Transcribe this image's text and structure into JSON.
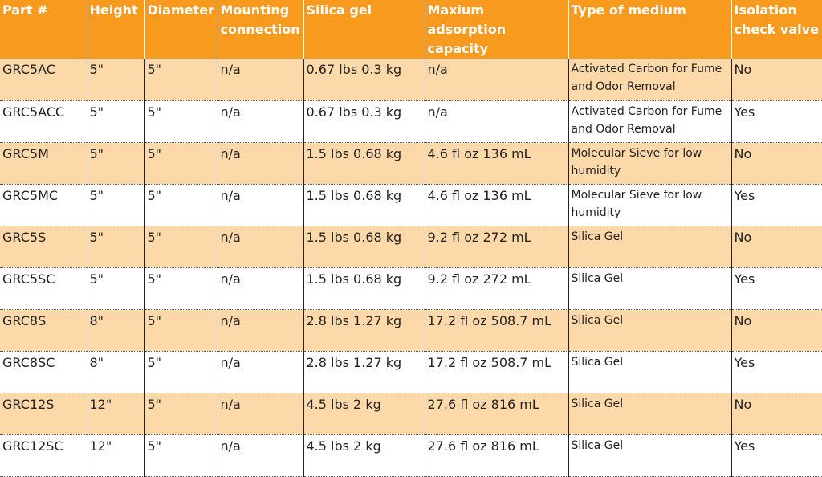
{
  "headers": [
    "Part #",
    "Height",
    "Diameter",
    "Mounting connection",
    "Silica gel",
    "Maxium adsorption capacity",
    "Type of medium",
    "Isolation check valve"
  ],
  "rows": [
    [
      "GRC5AC",
      "5\"",
      "5\"",
      "n/a",
      "0.67 lbs 0.3 kg",
      "n/a",
      "Activated Carbon for Fume and Odor Removal",
      "No"
    ],
    [
      "GRC5ACC",
      "5\"",
      "5\"",
      "n/a",
      "0.67 lbs 0.3 kg",
      "n/a",
      "Activated Carbon for Fume and Odor Removal",
      "Yes"
    ],
    [
      "GRC5M",
      "5\"",
      "5\"",
      "n/a",
      "1.5 lbs 0.68 kg",
      "4.6 fl oz 136 mL",
      "Molecular Sieve for low humidity",
      "No"
    ],
    [
      "GRC5MC",
      "5\"",
      "5\"",
      "n/a",
      "1.5 lbs 0.68 kg",
      "4.6 fl oz 136 mL",
      "Molecular Sieve for low humidity",
      "Yes"
    ],
    [
      "GRC5S",
      "5\"",
      "5\"",
      "n/a",
      "1.5 lbs 0.68 kg",
      "9.2 fl oz 272 mL",
      "Silica Gel",
      "No"
    ],
    [
      "GRC5SC",
      "5\"",
      "5\"",
      "n/a",
      "1.5 lbs 0.68 kg",
      "9.2 fl oz 272 mL",
      "Silica Gel",
      "Yes"
    ],
    [
      "GRC8S",
      "8\"",
      "5\"",
      "n/a",
      "2.8 lbs 1.27 kg",
      "17.2 fl oz 508.7 mL",
      "Silica Gel",
      "No"
    ],
    [
      "GRC8SC",
      "8\"",
      "5\"",
      "n/a",
      "2.8 lbs 1.27 kg",
      "17.2 fl oz 508.7 mL",
      "Silica Gel",
      "Yes"
    ],
    [
      "GRC12S",
      "12\"",
      "5\"",
      "n/a",
      "4.5 lbs 2 kg",
      "27.6 fl oz 816 mL",
      "Silica Gel",
      "No"
    ],
    [
      "GRC12SC",
      "12\"",
      "5\"",
      "n/a",
      "4.5 lbs 2 kg",
      "27.6 fl oz 816 mL",
      "Silica Gel",
      "Yes"
    ]
  ],
  "colors": {
    "header_bg": "#f79a1e",
    "header_text": "#ffffff",
    "alt_row_bg": "#fdd8a8",
    "plain_row_bg": "#ffffff"
  }
}
